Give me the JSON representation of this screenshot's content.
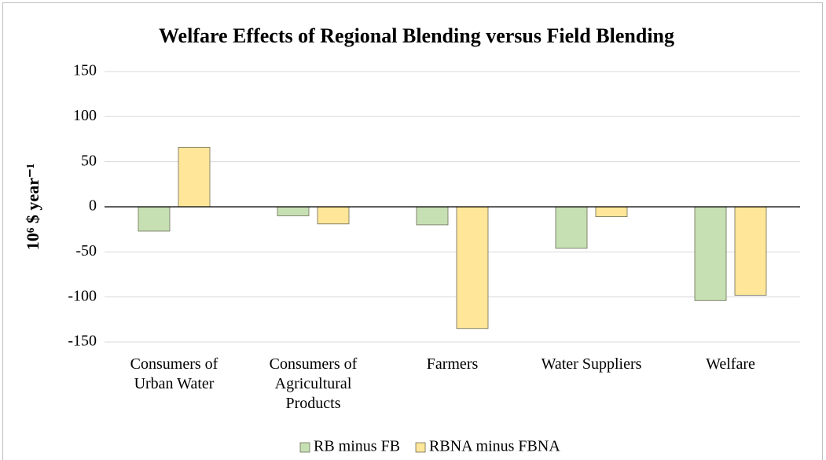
{
  "chart_data": {
    "type": "bar",
    "title": "Welfare Effects of Regional Blending versus Field Blending",
    "y_label": "10⁶ $ year⁻¹",
    "categories": [
      "Consumers of Urban Water",
      "Consumers of Agricultural Products",
      "Farmers",
      "Water Suppliers",
      "Welfare"
    ],
    "series": [
      {
        "name": "RB minus FB",
        "color": "#c6e0b4",
        "values": [
          -27,
          -10,
          -20,
          -46,
          -104
        ]
      },
      {
        "name": "RBNA minus FBNA",
        "color": "#ffe699",
        "values": [
          66,
          -19,
          -135,
          -11,
          -98
        ]
      }
    ],
    "ylim": [
      -150,
      150
    ],
    "yticks": [
      -150,
      -100,
      -50,
      0,
      50,
      100,
      150
    ],
    "grid": true,
    "legend": "bottom"
  }
}
